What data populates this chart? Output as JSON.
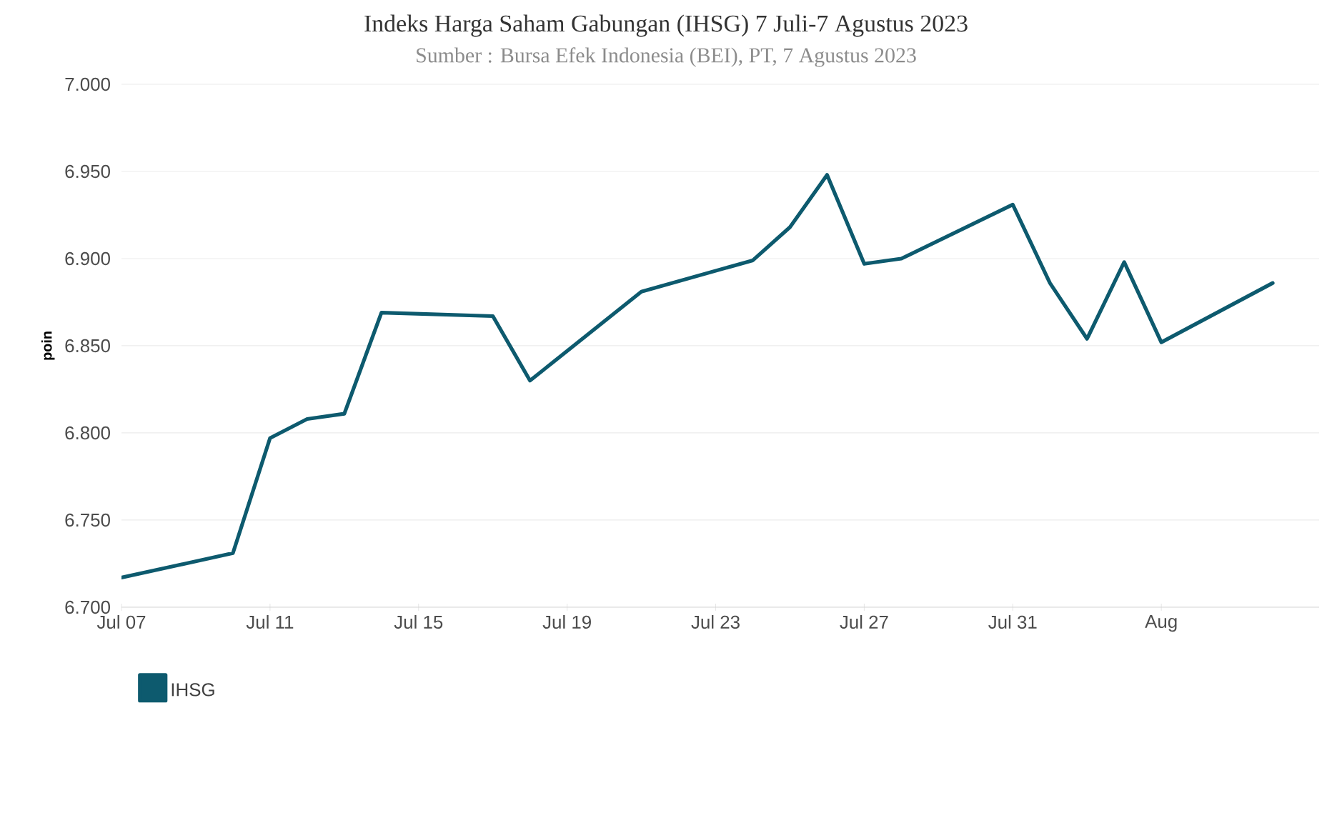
{
  "chart_data": {
    "type": "line",
    "title": "Indeks Harga Saham Gabungan (IHSG) 7 Juli-7 Agustus 2023",
    "subtitle": "Sumber : Bursa Efek Indonesia (BEI), PT, 7 Agustus 2023",
    "ylabel": "poin",
    "x": [
      "2023-07-07",
      "2023-07-10",
      "2023-07-11",
      "2023-07-12",
      "2023-07-13",
      "2023-07-14",
      "2023-07-17",
      "2023-07-18",
      "2023-07-21",
      "2023-07-24",
      "2023-07-25",
      "2023-07-26",
      "2023-07-27",
      "2023-07-28",
      "2023-07-31",
      "2023-08-01",
      "2023-08-02",
      "2023-08-03",
      "2023-08-04",
      "2023-08-07"
    ],
    "series": [
      {
        "name": "IHSG",
        "color": "#0d5a6e",
        "values": [
          6717,
          6731,
          6797,
          6808,
          6811,
          6869,
          6867,
          6830,
          6881,
          6899,
          6918,
          6948,
          6897,
          6900,
          6931,
          6886,
          6854,
          6898,
          6852,
          6886
        ]
      }
    ],
    "xlim": [
      "2023-07-07",
      "2023-08-08T06:00"
    ],
    "xticks": [
      {
        "value": "2023-07-07",
        "label": "Jul 07"
      },
      {
        "value": "2023-07-11",
        "label": "Jul 11"
      },
      {
        "value": "2023-07-15",
        "label": "Jul 15"
      },
      {
        "value": "2023-07-19",
        "label": "Jul 19"
      },
      {
        "value": "2023-07-23",
        "label": "Jul 23"
      },
      {
        "value": "2023-07-27",
        "label": "Jul 27"
      },
      {
        "value": "2023-07-31",
        "label": "Jul 31"
      },
      {
        "value": "2023-08-04",
        "label": "Aug"
      }
    ],
    "ylim": [
      6700,
      7000
    ],
    "yticks": [
      {
        "value": 6700,
        "label": "6.700"
      },
      {
        "value": 6750,
        "label": "6.750"
      },
      {
        "value": 6800,
        "label": "6.800"
      },
      {
        "value": 6850,
        "label": "6.850"
      },
      {
        "value": 6900,
        "label": "6.900"
      },
      {
        "value": 6950,
        "label": "6.950"
      },
      {
        "value": 7000,
        "label": "7.000"
      }
    ],
    "grid": "y",
    "legend": "bottom left",
    "marker": "none",
    "line_style": "solid"
  }
}
